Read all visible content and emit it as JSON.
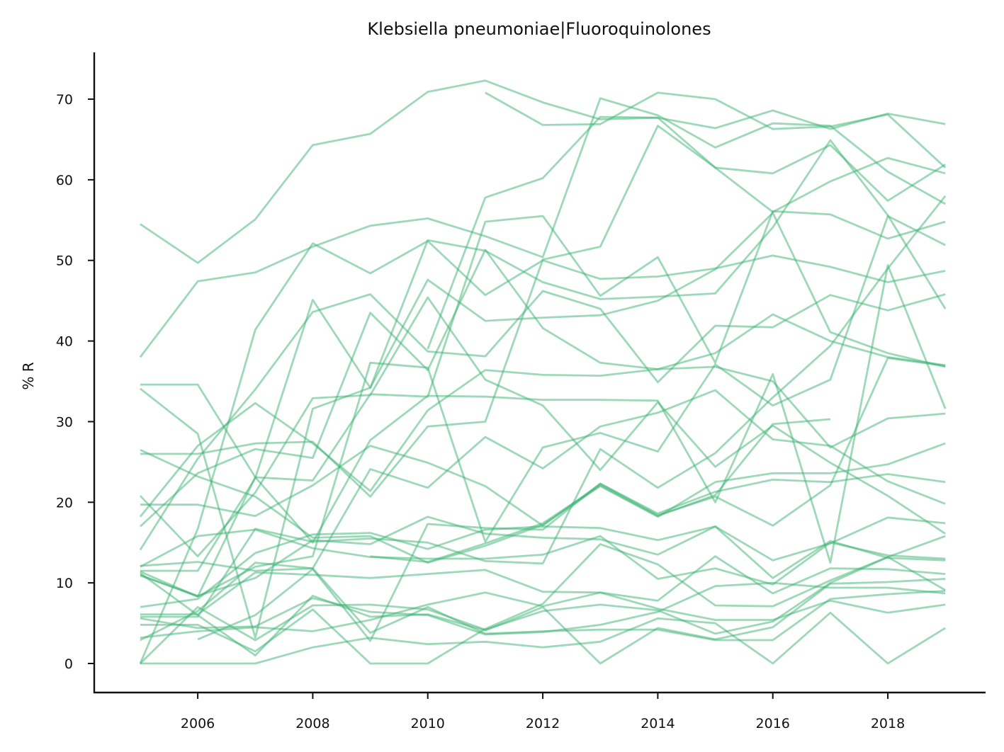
{
  "chart_data": {
    "type": "line",
    "title": "Klebsiella pneumoniae|Fluoroquinolones",
    "xlabel": "",
    "ylabel": "% R",
    "xlim": [
      2004.2,
      2019.7
    ],
    "ylim": [
      -3.6,
      75.8
    ],
    "xticks": [
      2006,
      2008,
      2010,
      2012,
      2014,
      2016,
      2018
    ],
    "yticks": [
      0,
      10,
      20,
      30,
      40,
      50,
      60,
      70
    ],
    "grid": false,
    "legend": "none",
    "line_color": "#3cb371",
    "line_opacity": 0.5,
    "x": [
      2005,
      2006,
      2007,
      2008,
      2009,
      2010,
      2011,
      2012,
      2013,
      2014,
      2015,
      2016,
      2017,
      2018,
      2019
    ],
    "series": [
      {
        "values": [
          54.5,
          49.7,
          55.1,
          64.3,
          65.7,
          70.9,
          72.3,
          69.6,
          67.5,
          67.7,
          66.4,
          68.6,
          66.3,
          68.2,
          66.9
        ]
      },
      {
        "values": [
          null,
          null,
          null,
          null,
          null,
          null,
          70.8,
          66.8,
          66.9,
          70.8,
          70.0,
          66.3,
          66.6,
          68.1,
          61.5
        ]
      },
      {
        "values": [
          38.0,
          47.4,
          48.5,
          51.7,
          54.3,
          55.2,
          53.0,
          50.4,
          70.1,
          68.0,
          64.0,
          67.0,
          66.7,
          61.0,
          57.0
        ]
      },
      {
        "values": [
          null,
          null,
          null,
          null,
          null,
          39.0,
          57.8,
          60.2,
          67.8,
          67.7,
          61.5,
          60.8,
          64.3,
          57.4,
          61.9
        ]
      },
      {
        "values": [
          34.6,
          34.6,
          23.1,
          22.7,
          33.4,
          33.1,
          54.8,
          55.5,
          45.6,
          50.4,
          37.3,
          56.1,
          55.7,
          52.7,
          54.8
        ]
      },
      {
        "values": [
          34.1,
          28.5,
          3.2,
          31.6,
          34.2,
          52.5,
          51.2,
          47.3,
          45.2,
          45.5,
          45.9,
          54.1,
          64.9,
          55.6,
          44.0
        ]
      },
      {
        "values": [
          26.0,
          26.0,
          27.3,
          27.5,
          20.7,
          29.4,
          30.0,
          50.1,
          51.7,
          66.7,
          61.5,
          56.0,
          59.8,
          62.7,
          60.8
        ]
      },
      {
        "values": [
          0.0,
          16.7,
          41.4,
          52.1,
          48.4,
          52.4,
          45.7,
          50.0,
          47.7,
          48.0,
          49.0,
          50.6,
          49.2,
          47.3,
          48.7
        ]
      },
      {
        "values": [
          11.5,
          11.5,
          23.0,
          45.1,
          34.2,
          47.6,
          42.5,
          42.9,
          43.2,
          45.0,
          48.9,
          55.9,
          41.1,
          38.5,
          36.8
        ]
      },
      {
        "values": [
          14.1,
          25.4,
          34.0,
          43.6,
          45.8,
          38.7,
          38.1,
          46.2,
          44.0,
          34.9,
          41.9,
          41.7,
          45.7,
          43.8,
          45.8
        ]
      },
      {
        "values": [
          17.0,
          23.6,
          26.6,
          25.5,
          43.5,
          36.4,
          51.3,
          41.6,
          37.3,
          36.5,
          38.5,
          43.3,
          40.0,
          38.0,
          37.0
        ]
      },
      {
        "values": [
          26.5,
          23.2,
          20.7,
          15.6,
          15.8,
          12.5,
          14.6,
          17.2,
          22.0,
          18.2,
          22.5,
          23.6,
          23.6,
          24.7,
          27.3
        ]
      },
      {
        "values": [
          19.7,
          19.7,
          18.3,
          22.1,
          27.0,
          24.9,
          22.0,
          17.1,
          22.3,
          18.6,
          21.3,
          22.8,
          22.5,
          23.5,
          22.5
        ]
      },
      {
        "values": [
          20.8,
          13.3,
          21.2,
          32.9,
          33.3,
          45.4,
          35.2,
          32.0,
          24.0,
          32.4,
          24.4,
          29.5,
          24.9,
          20.8,
          16.1
        ]
      },
      {
        "values": [
          18.2,
          27.0,
          32.3,
          27.3,
          21.4,
          31.4,
          36.4,
          35.8,
          35.7,
          36.5,
          36.8,
          35.0,
          26.8,
          30.4,
          31.0
        ]
      },
      {
        "values": [
          12.1,
          12.6,
          11.5,
          11.8,
          24.1,
          21.8,
          28.1,
          24.2,
          29.4,
          31.1,
          33.9,
          27.8,
          27.0,
          22.6,
          19.8
        ]
      },
      {
        "values": [
          11.0,
          8.3,
          23.1,
          15.0,
          27.7,
          33.2,
          33.1,
          32.7,
          32.7,
          32.6,
          20.0,
          35.9,
          12.5,
          49.4,
          31.6
        ]
      },
      {
        "values": [
          11.4,
          8.3,
          12.0,
          13.3,
          37.3,
          36.7,
          15.1,
          26.8,
          28.6,
          26.3,
          37.1,
          32.0,
          35.2,
          55.5,
          51.9
        ]
      },
      {
        "values": [
          5.8,
          5.8,
          16.7,
          15.1,
          15.5,
          15.0,
          12.7,
          12.4,
          26.6,
          21.8,
          26.1,
          33.0,
          39.4,
          49.0,
          58.0
        ]
      },
      {
        "values": [
          7.0,
          8.0,
          13.7,
          16.0,
          16.2,
          14.2,
          16.6,
          17.0,
          16.8,
          15.3,
          17.0,
          10.6,
          15.2,
          13.1,
          12.8
        ]
      },
      {
        "values": [
          12.0,
          15.8,
          16.6,
          14.3,
          13.2,
          13.0,
          13.0,
          13.5,
          15.8,
          10.5,
          11.8,
          9.8,
          15.0,
          13.4,
          13.0
        ]
      },
      {
        "values": [
          10.9,
          8.4,
          10.6,
          15.3,
          14.8,
          18.2,
          16.1,
          15.6,
          15.4,
          13.5,
          17.0,
          12.8,
          14.9,
          18.1,
          17.4
        ]
      },
      {
        "values": [
          6.1,
          6.1,
          11.3,
          11.0,
          10.6,
          11.1,
          11.6,
          8.9,
          8.8,
          7.8,
          13.3,
          8.7,
          11.8,
          11.7,
          11.1
        ]
      },
      {
        "values": [
          null,
          3.0,
          6.0,
          11.7,
          2.8,
          17.3,
          16.8,
          16.6,
          22.3,
          18.4,
          20.7,
          17.1,
          22.1,
          37.9,
          36.9
        ]
      },
      {
        "values": [
          5.6,
          4.4,
          4.6,
          8.1,
          6.4,
          6.0,
          3.6,
          3.9,
          4.8,
          6.4,
          9.6,
          10.0,
          9.4,
          9.4,
          8.7
        ]
      },
      {
        "values": [
          3.2,
          4.0,
          4.5,
          4.0,
          5.4,
          7.3,
          8.8,
          7.1,
          8.8,
          6.8,
          5.4,
          5.4,
          7.8,
          6.3,
          7.3
        ]
      },
      {
        "values": [
          4.8,
          4.8,
          1.5,
          6.7,
          0.0,
          0.0,
          4.3,
          7.4,
          14.8,
          12.3,
          7.2,
          7.1,
          10.3,
          13.2,
          9.1
        ]
      },
      {
        "values": [
          0.0,
          0.0,
          0.0,
          2.0,
          3.2,
          2.4,
          2.7,
          2.0,
          2.7,
          5.6,
          5.0,
          0.0,
          6.3,
          0.0,
          4.4
        ]
      },
      {
        "values": [
          0.0,
          7.0,
          2.9,
          7.2,
          7.3,
          6.7,
          4.2,
          6.5,
          7.3,
          6.6,
          3.7,
          5.2,
          10.0,
          13.2,
          15.8
        ]
      },
      {
        "values": [
          11.2,
          6.0,
          1.0,
          8.4,
          5.8,
          6.1,
          4.1,
          7.0,
          0.0,
          4.4,
          3.0,
          4.5,
          9.9,
          10.1,
          10.5
        ]
      },
      {
        "values": [
          2.9,
          6.5,
          12.5,
          11.8,
          3.8,
          7.0,
          3.7,
          4.0,
          4.2,
          4.2,
          2.9,
          2.9,
          8.0,
          8.6,
          9.0
        ]
      },
      {
        "values": [
          null,
          null,
          null,
          null,
          13.3,
          12.6,
          14.9,
          17.4,
          22.1,
          18.3,
          20.9,
          29.7,
          30.3,
          null,
          null
        ]
      }
    ]
  }
}
